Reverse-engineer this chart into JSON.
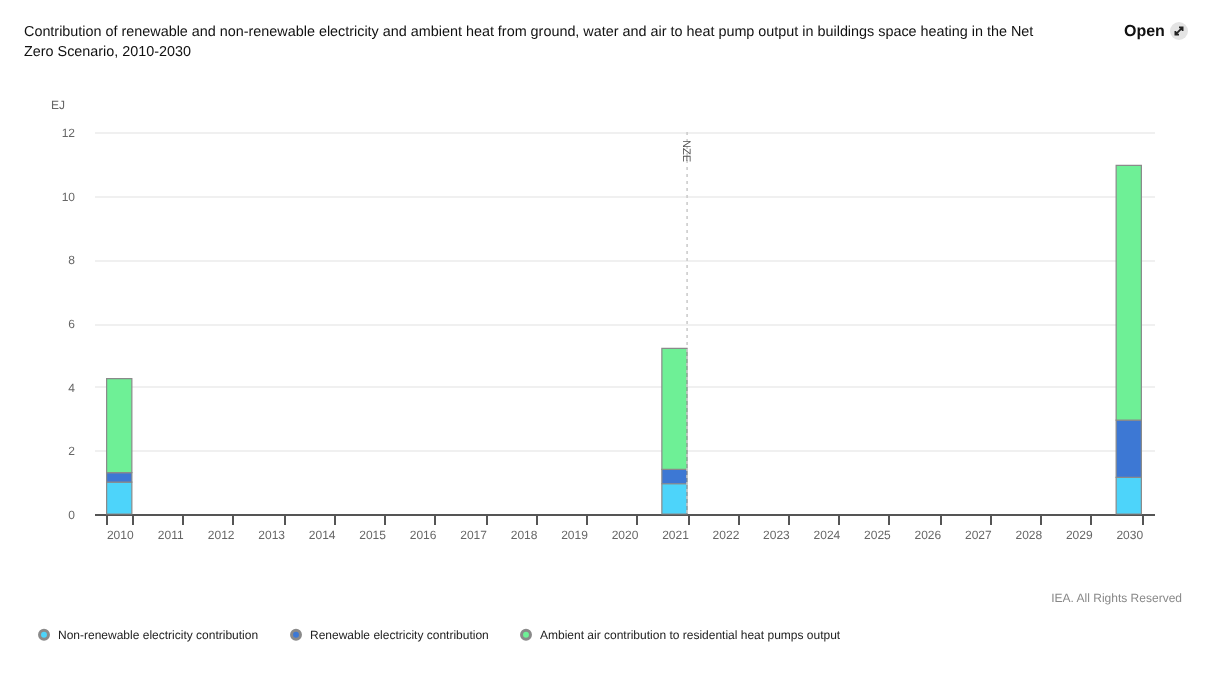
{
  "chart_data": {
    "type": "bar",
    "title": "Contribution of renewable and non-renewable electricity and ambient heat from ground, water and air to heat pump output in buildings space heating in the Net Zero Scenario, 2010-2030",
    "ylabel": "EJ",
    "annotations": [
      "Open",
      "IEA. All Rights Reserved"
    ],
    "categories": [
      "2010",
      "2011",
      "2012",
      "2013",
      "2014",
      "2015",
      "2016",
      "2017",
      "2018",
      "2019",
      "2020",
      "2021",
      "2022",
      "2023",
      "2024",
      "2025",
      "2026",
      "2027",
      "2028",
      "2029",
      "2030"
    ],
    "series": [
      {
        "name": "Non-renewable electricity contribution",
        "color": "#4dd4fa",
        "values": [
          1.0,
          null,
          null,
          null,
          null,
          null,
          null,
          null,
          null,
          null,
          null,
          0.95,
          null,
          null,
          null,
          null,
          null,
          null,
          null,
          null,
          1.15
        ]
      },
      {
        "name": "Renewable electricity contribution",
        "color": "#3d78d4",
        "values": [
          0.3,
          null,
          null,
          null,
          null,
          null,
          null,
          null,
          null,
          null,
          null,
          0.45,
          null,
          null,
          null,
          null,
          null,
          null,
          null,
          null,
          1.8
        ]
      },
      {
        "name": "Ambient air contribution to residential heat pumps output",
        "color": "#6ef096",
        "values": [
          2.95,
          null,
          null,
          null,
          null,
          null,
          null,
          null,
          null,
          null,
          null,
          3.8,
          null,
          null,
          null,
          null,
          null,
          null,
          null,
          null,
          8.0
        ]
      }
    ],
    "stacked": true,
    "ylim": [
      0,
      12
    ],
    "yticks": [
      0,
      2,
      4,
      6,
      8,
      10,
      12
    ],
    "grid": "y",
    "legend": "bottom",
    "ref_lines": [
      {
        "axis": "x",
        "value": "2021",
        "label": "NZE",
        "line_style": "dotted"
      }
    ]
  }
}
